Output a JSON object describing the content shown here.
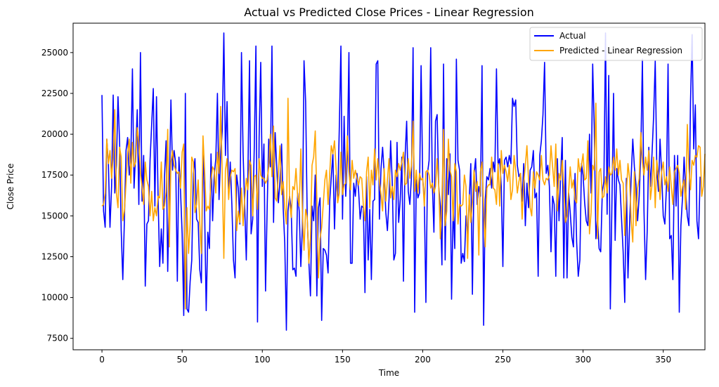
{
  "chart_data": {
    "type": "line",
    "title": "Actual vs Predicted Close Prices - Linear Regression",
    "xlabel": "Time",
    "ylabel": "Close Price",
    "xlim": [
      -18,
      376
    ],
    "ylim": [
      6800,
      26800
    ],
    "xticks": [
      0,
      50,
      100,
      150,
      200,
      250,
      300,
      350
    ],
    "yticks": [
      7500,
      10000,
      12500,
      15000,
      17500,
      20000,
      22500,
      25000
    ],
    "grid": false,
    "legend": "top-right",
    "series": [
      {
        "name": "Actual",
        "color": "#0000ff",
        "values": [
          22400,
          15300,
          14300,
          19700,
          18200,
          14300,
          16800,
          22400,
          16400,
          18100,
          22300,
          19500,
          14100,
          11100,
          14800,
          19000,
          19800,
          17500,
          18500,
          24000,
          16700,
          18800,
          21500,
          15700,
          25000,
          15900,
          18700,
          10700,
          14500,
          14700,
          18400,
          20600,
          22800,
          15600,
          22300,
          16100,
          11900,
          14200,
          12100,
          17400,
          19600,
          11600,
          16600,
          22100,
          17800,
          19000,
          18200,
          11000,
          18600,
          16500,
          13900,
          8900,
          22500,
          9300,
          9100,
          11000,
          12300,
          17600,
          18500,
          14800,
          14600,
          11700,
          10900,
          19500,
          15400,
          9200,
          14000,
          13000,
          18800,
          14700,
          17500,
          18500,
          22500,
          16000,
          18700,
          20200,
          26200,
          18700,
          22000,
          16100,
          18300,
          15700,
          12300,
          11200,
          17500,
          16700,
          14500,
          25000,
          18900,
          15600,
          12300,
          17500,
          24500,
          13900,
          14800,
          19300,
          25400,
          8500,
          19800,
          24400,
          16800,
          19400,
          10400,
          15400,
          19700,
          18000,
          25400,
          14600,
          20100,
          18000,
          15800,
          17100,
          19400,
          15500,
          13300,
          8000,
          15300,
          16200,
          15400,
          11700,
          11800,
          11300,
          16400,
          15300,
          11900,
          14300,
          24500,
          22000,
          14900,
          12200,
          10100,
          15600,
          14700,
          17500,
          10100,
          15500,
          16100,
          8600,
          13000,
          12900,
          12600,
          11500,
          15900,
          17400,
          18800,
          14200,
          17500,
          16000,
          20400,
          25400,
          14800,
          21100,
          16200,
          18600,
          25000,
          12100,
          12100,
          17000,
          16200,
          17600,
          16600,
          14800,
          15600,
          15500,
          10300,
          17400,
          12300,
          15400,
          11100,
          15900,
          16000,
          24300,
          24500,
          14800,
          17900,
          19200,
          17600,
          15200,
          14100,
          16000,
          19600,
          17100,
          12300,
          12700,
          19500,
          14600,
          16000,
          18600,
          11000,
          18600,
          20800,
          16500,
          15700,
          17400,
          25300,
          9100,
          17200,
          16100,
          16400,
          24200,
          17300,
          16000,
          9700,
          17600,
          18400,
          25300,
          17000,
          14000,
          20800,
          21200,
          16800,
          15600,
          12000,
          24300,
          12300,
          18500,
          16300,
          18800,
          9900,
          15500,
          13000,
          24600,
          18400,
          17800,
          12100,
          12700,
          12200,
          15000,
          13800,
          16000,
          18200,
          10200,
          17500,
          18500,
          15700,
          16800,
          16200,
          24200,
          8300,
          16000,
          17400,
          17200,
          17900,
          16700,
          18300,
          17700,
          24000,
          18100,
          18500,
          16800,
          11900,
          18400,
          18600,
          18000,
          18700,
          18200,
          22200,
          21700,
          22100,
          18100,
          17400,
          17600,
          15900,
          18200,
          14400,
          17000,
          15500,
          17800,
          18000,
          19000,
          16100,
          16400,
          11300,
          18700,
          19600,
          21200,
          24400,
          17600,
          18100,
          16800,
          12800,
          16200,
          15700,
          11300,
          18500,
          14700,
          17400,
          19800,
          11200,
          18400,
          11200,
          16400,
          15200,
          13700,
          13100,
          17600,
          13400,
          11300,
          12300,
          18200,
          17500,
          15800,
          14700,
          14400,
          20000,
          16400,
          24300,
          20300,
          13600,
          14900,
          13000,
          12800,
          16500,
          17100,
          26200,
          15100,
          23600,
          9300,
          15800,
          22500,
          13500,
          17900,
          17200,
          16900,
          14800,
          12800,
          9700,
          17300,
          11200,
          14400,
          17400,
          19700,
          18000,
          16900,
          14700,
          16200,
          18800,
          24600,
          15300,
          11100,
          14100,
          19200,
          16800,
          18800,
          21100,
          24500,
          17800,
          16500,
          19700,
          17600,
          15000,
          14500,
          16800,
          24300,
          13600,
          13800,
          11100,
          18700,
          15600,
          18700,
          9100,
          14400,
          16100,
          18600,
          16500,
          15000,
          14400,
          22000,
          26100,
          19100,
          21800,
          14700,
          13600,
          17400
        ]
      },
      {
        "name": "Predicted - Linear Regression",
        "color": "#ffa500",
        "values": [
          15600,
          15700,
          16400,
          19700,
          18200,
          19000,
          17300,
          18700,
          21500,
          16400,
          15500,
          19200,
          18600,
          14700,
          15300,
          17000,
          18800,
          19700,
          17000,
          19500,
          18000,
          18300,
          20400,
          19500,
          17600,
          16800,
          15700,
          18300,
          17200,
          16800,
          15000,
          16500,
          14700,
          15500,
          15000,
          16200,
          16100,
          18300,
          15400,
          15600,
          16500,
          20300,
          13100,
          18300,
          19000,
          18100,
          17800,
          17600,
          17700,
          16700,
          18900,
          19400,
          9300,
          15500,
          12700,
          14500,
          18600,
          18300,
          15200,
          15700,
          17200,
          14500,
          12700,
          19900,
          17800,
          15300,
          15600,
          15400,
          17200,
          18000,
          17800,
          16400,
          18900,
          17600,
          21700,
          17600,
          12400,
          17800,
          18500,
          16000,
          17400,
          17800,
          17700,
          17900,
          14100,
          15300,
          14600,
          16700,
          14400,
          16000,
          17300,
          16600,
          18400,
          18100,
          15000,
          17400,
          17500,
          15400,
          18500,
          17500,
          17300,
          17300,
          17000,
          17200,
          18000,
          20000,
          17400,
          20500,
          16100,
          15900,
          17600,
          19300,
          16300,
          17100,
          15500,
          14500,
          22200,
          15900,
          14900,
          16800,
          16600,
          17900,
          16200,
          15600,
          19100,
          15200,
          12900,
          15400,
          14900,
          12100,
          13600,
          18100,
          18600,
          20200,
          16000,
          11200,
          13600,
          14300,
          15700,
          17200,
          17800,
          15700,
          17600,
          19300,
          18800,
          19600,
          17900,
          15800,
          16400,
          18900,
          16300,
          16900,
          17000,
          19900,
          17700,
          16600,
          18400,
          17300,
          17800,
          17300,
          16900,
          17400,
          17300,
          15600,
          14700,
          17700,
          18600,
          15500,
          17800,
          16900,
          19100,
          17200,
          18500,
          17100,
          16300,
          15300,
          17900,
          15900,
          17200,
          18500,
          16100,
          16800,
          16000,
          17800,
          17400,
          18200,
          17800,
          18300,
          18900,
          16900,
          17000,
          18500,
          17300,
          18100,
          20800,
          16500,
          17800,
          16400,
          17600,
          17200,
          17300,
          15600,
          17700,
          17800,
          17500,
          16700,
          17000,
          16400,
          16800,
          18500,
          16900,
          13600,
          16100,
          20300,
          14400,
          15300,
          19700,
          17800,
          17400,
          14700,
          18200,
          17700,
          14500,
          15700,
          15600,
          15700,
          17500,
          16800,
          12400,
          16300,
          14600,
          15800,
          17800,
          16500,
          17100,
          12600,
          17700,
          18300,
          15500,
          13100,
          16700,
          16900,
          16900,
          18600,
          16700,
          16600,
          15700,
          18200,
          15600,
          19000,
          17600,
          18100,
          17700,
          17100,
          18100,
          16000,
          16600,
          18700,
          17800,
          16400,
          17100,
          17600,
          14800,
          17000,
          18100,
          19300,
          17200,
          15500,
          15000,
          17700,
          16700,
          17700,
          17500,
          17200,
          18700,
          17200,
          16900,
          17300,
          17200,
          17500,
          19300,
          18000,
          16800,
          19400,
          15300,
          17600,
          17200,
          18400,
          16800,
          14600,
          15000,
          16500,
          18000,
          16700,
          17200,
          16000,
          15800,
          18500,
          17700,
          18100,
          18800,
          17200,
          17300,
          19600,
          13900,
          15200,
          18100,
          17800,
          21900,
          13600,
          17700,
          17900,
          16100,
          16200,
          17400,
          16400,
          18000,
          17500,
          17600,
          18600,
          17800,
          19100,
          17500,
          18400,
          17200,
          17000,
          13800,
          16400,
          18200,
          17300,
          14700,
          13400,
          17700,
          14400,
          16700,
          17300,
          20100,
          18300,
          17500,
          18600,
          17800,
          19000,
          16000,
          16900,
          18600,
          15500,
          18400,
          17500,
          16000,
          17700,
          18300,
          16900,
          17400,
          16500,
          18000,
          16800,
          15700,
          17700,
          17900,
          18100,
          17600,
          16200,
          16800,
          17200,
          15400,
          20600,
          17900,
          16600,
          18400,
          18100,
          18700,
          18600,
          19300,
          19200,
          16200,
          16800,
          18800
        ]
      }
    ]
  }
}
